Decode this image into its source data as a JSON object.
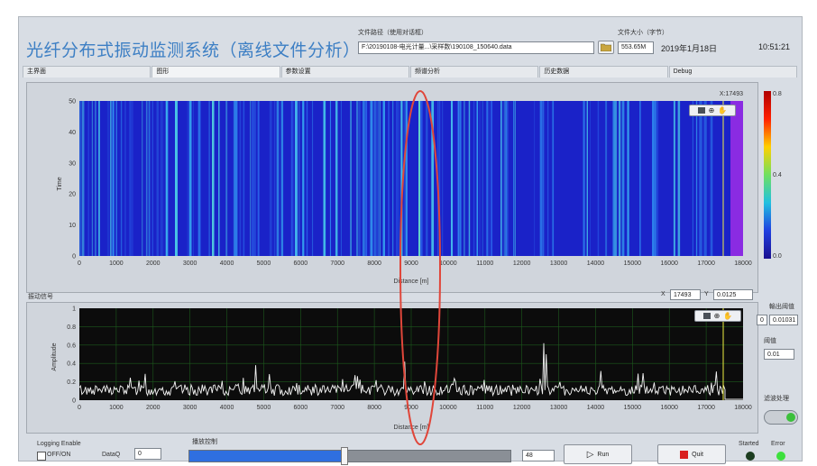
{
  "app": {
    "title": "光纤分布式振动监测系统（离线文件分析）",
    "file_path_label": "文件路径（使用对话框）",
    "file_path_value": "F:\\20190108-电光计量...\\采样数\\190108_150640.data",
    "file_size_label": "文件大小（字节）",
    "file_size_value": "553.65M",
    "date": "2019年1月18日",
    "time": "10:51:21"
  },
  "tabs": [
    "主界面",
    "图形",
    "参数设置",
    "频谱分析",
    "历史数据",
    "Debug"
  ],
  "waterfall": {
    "cursor_label": "X:17493",
    "y_axis_title": "Time",
    "x_axis_title": "Distance [m]",
    "y_ticks": [
      "0",
      "10",
      "20",
      "30",
      "40",
      "50"
    ],
    "x_ticks": [
      "0",
      "1000",
      "2000",
      "3000",
      "4000",
      "5000",
      "6000",
      "7000",
      "8000",
      "9000",
      "10000",
      "11000",
      "12000",
      "13000",
      "14000",
      "15000",
      "16000",
      "17000",
      "18000"
    ],
    "colorbar_ticks": [
      "0.8",
      "0.4",
      "0.0"
    ]
  },
  "signal": {
    "section_label": "振动信号",
    "cursor_x_label": "X",
    "cursor_x_value": "17493",
    "cursor_y_label": "Y",
    "cursor_y_value": "0.0125",
    "y_axis_title": "Amplitude",
    "x_axis_title": "Distance [m]",
    "y_ticks": [
      "0",
      "0.2",
      "0.4",
      "0.6",
      "0.8",
      "1"
    ]
  },
  "right_controls": {
    "threshold_label": "輸出阈值",
    "threshold_value": "0.01031",
    "threshold_spin": "0",
    "step_label": "阈值",
    "step_value": "0.01",
    "filter_label": "滤波处理"
  },
  "bottom": {
    "logging_label": "Logging Enable",
    "offon_label": "OFF/ON",
    "dataq_label": "DataQ",
    "dataq_value": "0",
    "slider_label": "播放控制",
    "slider_value": "48",
    "run_label": "Run",
    "quit_label": "Quit",
    "started_label": "Started",
    "error_label": "Error"
  },
  "colors": {
    "title": "#3d7fc4",
    "waterfall_bg": "#1a22c8",
    "signal_bg": "#0c0c0c",
    "ellipse": "#e0463a",
    "led_off": "#1c3d20",
    "led_on": "#3de03d"
  }
}
